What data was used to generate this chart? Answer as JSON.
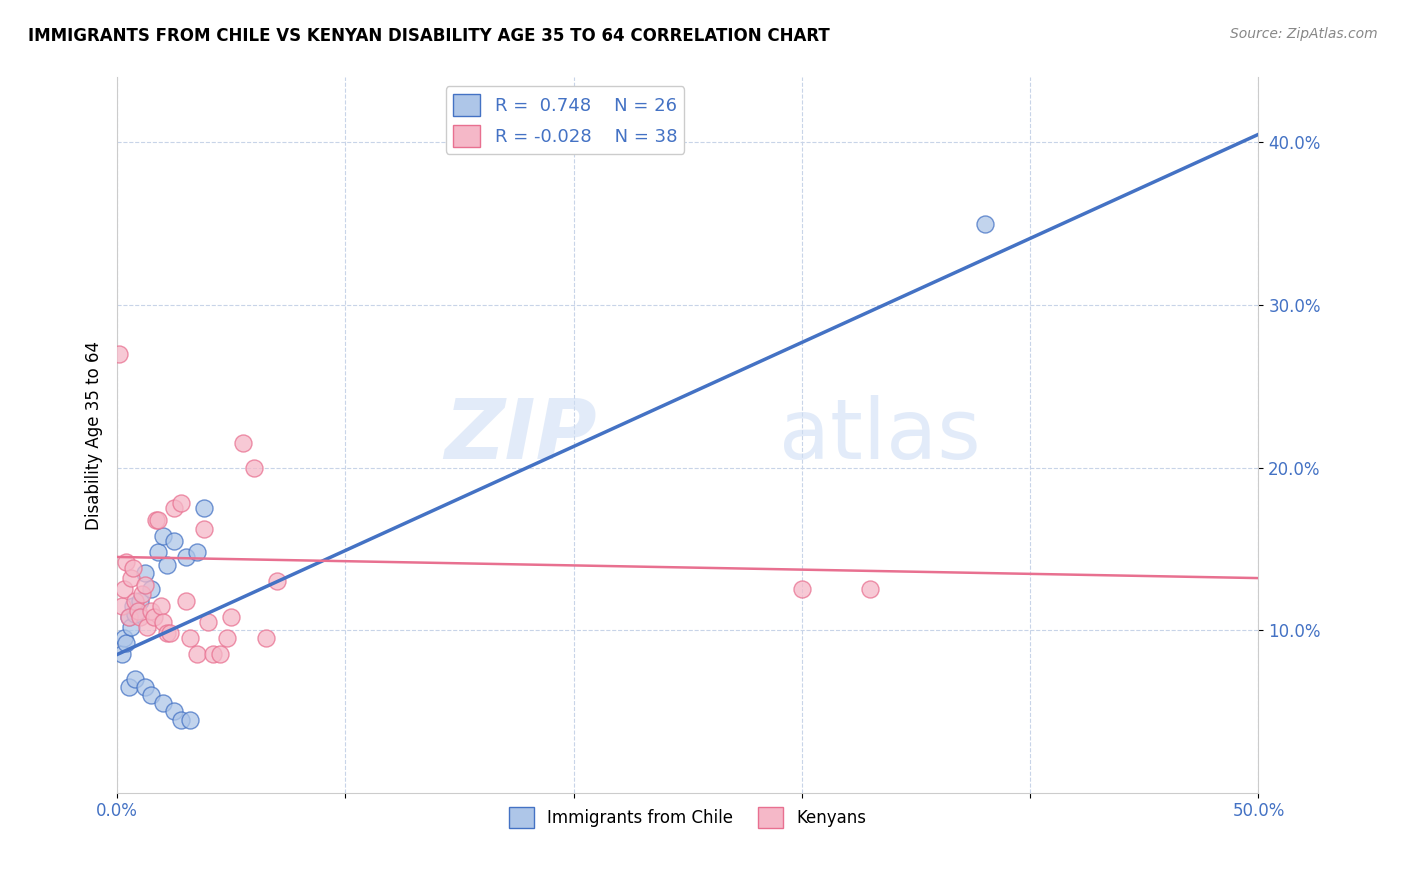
{
  "title": "IMMIGRANTS FROM CHILE VS KENYAN DISABILITY AGE 35 TO 64 CORRELATION CHART",
  "source": "Source: ZipAtlas.com",
  "ylabel": "Disability Age 35 to 64",
  "xlim": [
    0.0,
    0.5
  ],
  "ylim": [
    0.0,
    0.44
  ],
  "xticks": [
    0.0,
    0.5
  ],
  "xticklabels": [
    "0.0%",
    "50.0%"
  ],
  "yticks": [
    0.1,
    0.2,
    0.3,
    0.4
  ],
  "yticklabels": [
    "10.0%",
    "20.0%",
    "30.0%",
    "40.0%"
  ],
  "blue_color": "#aec6e8",
  "pink_color": "#f5b8c8",
  "blue_line_color": "#4472c4",
  "pink_line_color": "#e87090",
  "grid_color": "#c8d4e8",
  "background_color": "#ffffff",
  "watermark_zip": "ZIP",
  "watermark_atlas": "atlas",
  "legend_r_blue": "0.748",
  "legend_n_blue": "26",
  "legend_r_pink": "-0.028",
  "legend_n_pink": "38",
  "legend_label_blue": "Immigrants from Chile",
  "legend_label_pink": "Kenyans",
  "blue_scatter_x": [
    0.002,
    0.003,
    0.004,
    0.005,
    0.006,
    0.007,
    0.008,
    0.01,
    0.012,
    0.015,
    0.018,
    0.02,
    0.022,
    0.025,
    0.03,
    0.035,
    0.038,
    0.005,
    0.008,
    0.012,
    0.015,
    0.02,
    0.025,
    0.028,
    0.032,
    0.38
  ],
  "blue_scatter_y": [
    0.085,
    0.095,
    0.092,
    0.108,
    0.102,
    0.115,
    0.11,
    0.118,
    0.135,
    0.125,
    0.148,
    0.158,
    0.14,
    0.155,
    0.145,
    0.148,
    0.175,
    0.065,
    0.07,
    0.065,
    0.06,
    0.055,
    0.05,
    0.045,
    0.045,
    0.35
  ],
  "pink_scatter_x": [
    0.001,
    0.002,
    0.003,
    0.004,
    0.005,
    0.006,
    0.007,
    0.008,
    0.009,
    0.01,
    0.011,
    0.012,
    0.013,
    0.015,
    0.016,
    0.017,
    0.018,
    0.019,
    0.02,
    0.022,
    0.023,
    0.025,
    0.028,
    0.03,
    0.032,
    0.035,
    0.038,
    0.04,
    0.042,
    0.045,
    0.048,
    0.05,
    0.055,
    0.06,
    0.065,
    0.07,
    0.3,
    0.33
  ],
  "pink_scatter_y": [
    0.27,
    0.115,
    0.125,
    0.142,
    0.108,
    0.132,
    0.138,
    0.118,
    0.112,
    0.108,
    0.122,
    0.128,
    0.102,
    0.112,
    0.108,
    0.168,
    0.168,
    0.115,
    0.105,
    0.098,
    0.098,
    0.175,
    0.178,
    0.118,
    0.095,
    0.085,
    0.162,
    0.105,
    0.085,
    0.085,
    0.095,
    0.108,
    0.215,
    0.2,
    0.095,
    0.13,
    0.125,
    0.125
  ],
  "blue_line_x0": 0.0,
  "blue_line_y0": 0.085,
  "blue_line_x1": 0.5,
  "blue_line_y1": 0.405,
  "pink_line_x0": 0.0,
  "pink_line_y0": 0.145,
  "pink_line_x1": 0.5,
  "pink_line_y1": 0.132
}
